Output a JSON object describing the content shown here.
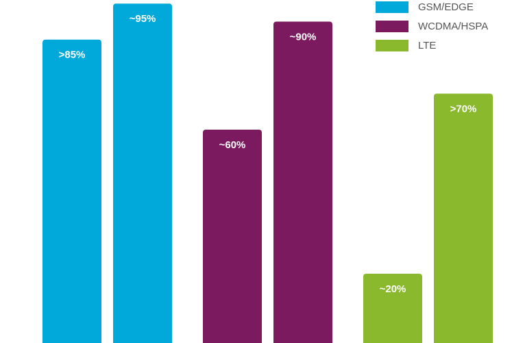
{
  "chart_data": {
    "type": "bar",
    "categories": [
      null,
      null
    ],
    "series": [
      {
        "name": "GSM/EDGE",
        "color": "#00a9d9",
        "values": [
          85,
          95
        ],
        "value_labels": [
          ">85%",
          "~95%"
        ]
      },
      {
        "name": "WCDMA/HSPA",
        "color": "#7b1a5e",
        "values": [
          60,
          90
        ],
        "value_labels": [
          "~60%",
          "~90%"
        ]
      },
      {
        "name": "LTE",
        "color": "#8ab92d",
        "values": [
          20,
          70
        ],
        "value_labels": [
          "~20%",
          ">70%"
        ]
      }
    ],
    "ylim": [
      0,
      96
    ],
    "legend": "top-right"
  }
}
